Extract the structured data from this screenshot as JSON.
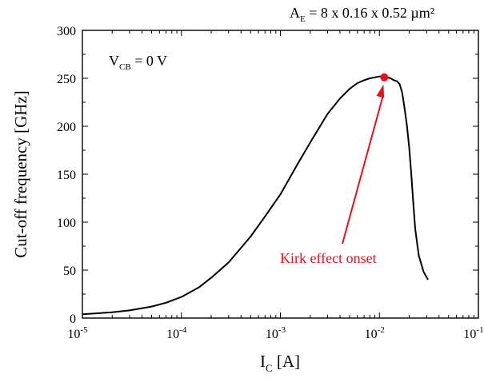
{
  "chart_data": {
    "type": "line",
    "x_scale": "log",
    "xlim": [
      1e-05,
      0.1
    ],
    "ylim": [
      0,
      300
    ],
    "x_ticks": [
      {
        "base": "10",
        "exp": "-5"
      },
      {
        "base": "10",
        "exp": "-4"
      },
      {
        "base": "10",
        "exp": "-3"
      },
      {
        "base": "10",
        "exp": "-2"
      },
      {
        "base": "10",
        "exp": "-1"
      }
    ],
    "y_ticks": [
      "0",
      "50",
      "100",
      "150",
      "200",
      "250",
      "300"
    ],
    "ylabel": "Cut-off frequency [GHz]",
    "xlabel": {
      "main": "I",
      "sub": "C",
      "unit": " [A]"
    },
    "annotation_vcb": {
      "main": "V",
      "sub": "CB",
      "rest": " = 0 V"
    },
    "annotation_ae": {
      "main": "A",
      "sub": "E",
      "rest": " = 8 x 0.16 x 0.52 µm²"
    },
    "kirk_label": "Kirk effect onset",
    "kirk_point": {
      "x": 0.0112,
      "y": 251
    },
    "series": [
      {
        "color": "#000000",
        "x": [
          1e-05,
          2e-05,
          3e-05,
          5e-05,
          7e-05,
          0.0001,
          0.00015,
          0.0002,
          0.0003,
          0.0005,
          0.0007,
          0.001,
          0.0015,
          0.002,
          0.003,
          0.004,
          0.005,
          0.006,
          0.007,
          0.008,
          0.009,
          0.01,
          0.011,
          0.012,
          0.013,
          0.014,
          0.015,
          0.016,
          0.017,
          0.018,
          0.019,
          0.02,
          0.021,
          0.022,
          0.023,
          0.025,
          0.028,
          0.031
        ],
        "y": [
          4,
          6,
          8,
          12,
          16,
          22,
          32,
          42,
          58,
          85,
          106,
          129,
          161,
          183,
          213,
          229,
          239,
          245,
          248,
          250,
          251,
          252,
          252,
          251,
          250,
          248,
          247,
          244,
          235,
          218,
          200,
          178,
          150,
          120,
          93,
          65,
          48,
          40
        ]
      }
    ],
    "kirk_color": "#e8101a"
  }
}
